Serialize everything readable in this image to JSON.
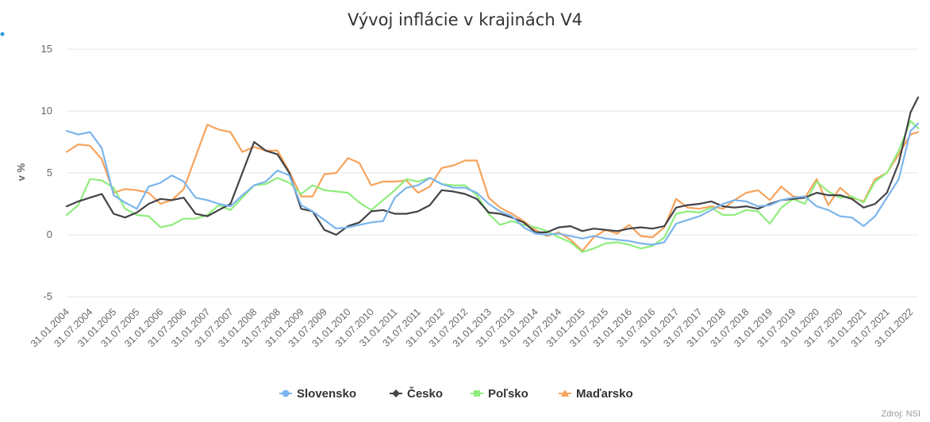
{
  "chart_data": {
    "type": "line",
    "title": "Vývoj inflácie v krajinách V4",
    "ylabel": "v %",
    "xlabel": "",
    "ylim": [
      -5,
      15
    ],
    "yticks": [
      -5,
      0,
      5,
      10,
      15
    ],
    "grid": true,
    "legend_position": "bottom-center",
    "credit": "Zdroj: NSI",
    "x_tick_labels": [
      "31.01.2004",
      "31.07.2004",
      "31.01.2005",
      "31.07.2005",
      "31.01.2006",
      "31.07.2006",
      "31.01.2007",
      "31.07.2007",
      "31.01.2008",
      "31.07.2008",
      "31.01.2009",
      "31.07.2009",
      "31.01.2010",
      "31.07.2010",
      "31.01.2011",
      "31.07.2011",
      "31.01.2012",
      "31.07.2012",
      "31.01.2013",
      "31.07.2013",
      "31.01.2014",
      "31.07.2014",
      "31.01.2015",
      "31.07.2015",
      "31.01.2016",
      "31.07.2016",
      "31.01.2017",
      "31.07.2017",
      "31.01.2018",
      "31.07.2018",
      "31.01.2019",
      "31.07.2019",
      "31.01.2020",
      "31.07.2020",
      "31.01.2021",
      "31.07.2021",
      "31.01.2022"
    ],
    "x": [
      "31.01.2004",
      "30.04.2004",
      "31.07.2004",
      "31.10.2004",
      "31.01.2005",
      "30.04.2005",
      "31.07.2005",
      "31.10.2005",
      "31.01.2006",
      "30.04.2006",
      "31.07.2006",
      "31.10.2006",
      "31.01.2007",
      "30.04.2007",
      "31.07.2007",
      "31.10.2007",
      "31.01.2008",
      "30.04.2008",
      "31.07.2008",
      "31.10.2008",
      "31.01.2009",
      "30.04.2009",
      "31.07.2009",
      "31.10.2009",
      "31.01.2010",
      "30.04.2010",
      "31.07.2010",
      "31.10.2010",
      "31.01.2011",
      "30.04.2011",
      "31.07.2011",
      "31.10.2011",
      "31.01.2012",
      "30.04.2012",
      "31.07.2012",
      "31.10.2012",
      "31.01.2013",
      "30.04.2013",
      "31.07.2013",
      "31.10.2013",
      "31.01.2014",
      "30.04.2014",
      "31.07.2014",
      "31.10.2014",
      "31.01.2015",
      "30.04.2015",
      "31.07.2015",
      "31.10.2015",
      "31.01.2016",
      "30.04.2016",
      "31.07.2016",
      "31.10.2016",
      "31.01.2017",
      "30.04.2017",
      "31.07.2017",
      "31.10.2017",
      "31.01.2018",
      "30.04.2018",
      "31.07.2018",
      "31.10.2018",
      "31.01.2019",
      "30.04.2019",
      "31.07.2019",
      "31.10.2019",
      "31.01.2020",
      "30.04.2020",
      "31.07.2020",
      "31.10.2020",
      "31.01.2021",
      "30.04.2021",
      "31.07.2021",
      "31.10.2021",
      "31.01.2022",
      "31.03.2022"
    ],
    "series": [
      {
        "name": "Slovensko",
        "color": "#7cb5ec",
        "marker": "circle",
        "values": [
          8.4,
          8.1,
          8.3,
          7.0,
          3.2,
          2.6,
          2.1,
          3.9,
          4.2,
          4.8,
          4.3,
          3.0,
          2.8,
          2.5,
          2.3,
          3.2,
          4.0,
          4.3,
          5.2,
          4.8,
          2.4,
          1.9,
          1.2,
          0.5,
          0.6,
          0.8,
          1.0,
          1.1,
          3.0,
          3.8,
          4.0,
          4.6,
          4.1,
          3.8,
          3.8,
          3.4,
          2.5,
          1.9,
          1.5,
          0.6,
          0.1,
          0.0,
          0.1,
          -0.1,
          -0.3,
          -0.1,
          -0.3,
          -0.4,
          -0.5,
          -0.7,
          -0.8,
          -0.6,
          0.9,
          1.2,
          1.5,
          2.0,
          2.5,
          2.8,
          2.7,
          2.3,
          2.4,
          2.8,
          3.0,
          3.1,
          2.3,
          2.0,
          1.5,
          1.4,
          0.7,
          1.5,
          3.0,
          4.5,
          8.4,
          9.0
        ]
      },
      {
        "name": "Česko",
        "color": "#434348",
        "marker": "diamond",
        "values": [
          2.3,
          2.7,
          3.0,
          3.3,
          1.7,
          1.4,
          1.8,
          2.5,
          2.9,
          2.8,
          3.0,
          1.7,
          1.5,
          2.0,
          2.5,
          5.0,
          7.5,
          6.8,
          6.5,
          5.0,
          2.1,
          1.9,
          0.4,
          0.0,
          0.7,
          1.0,
          1.9,
          2.0,
          1.7,
          1.7,
          1.9,
          2.4,
          3.6,
          3.5,
          3.3,
          2.9,
          1.8,
          1.7,
          1.4,
          1.0,
          0.2,
          0.2,
          0.6,
          0.7,
          0.3,
          0.5,
          0.4,
          0.3,
          0.5,
          0.6,
          0.5,
          0.7,
          2.2,
          2.4,
          2.5,
          2.7,
          2.3,
          2.2,
          2.3,
          2.1,
          2.5,
          2.8,
          2.9,
          3.0,
          3.4,
          3.2,
          3.2,
          2.9,
          2.2,
          2.5,
          3.4,
          5.8,
          9.9,
          11.1
        ]
      },
      {
        "name": "Poľsko",
        "color": "#90ed7d",
        "marker": "square",
        "values": [
          1.6,
          2.4,
          4.5,
          4.4,
          3.8,
          2.1,
          1.6,
          1.5,
          0.6,
          0.8,
          1.3,
          1.3,
          1.6,
          2.4,
          2.0,
          3.0,
          4.0,
          4.1,
          4.6,
          4.2,
          3.3,
          4.0,
          3.6,
          3.5,
          3.4,
          2.6,
          2.0,
          2.8,
          3.6,
          4.5,
          4.3,
          4.6,
          4.1,
          4.0,
          4.0,
          3.2,
          1.7,
          0.8,
          1.1,
          0.8,
          0.6,
          0.3,
          -0.2,
          -0.6,
          -1.4,
          -1.1,
          -0.7,
          -0.6,
          -0.8,
          -1.1,
          -0.9,
          -0.2,
          1.7,
          1.9,
          1.8,
          2.2,
          1.6,
          1.6,
          2.0,
          1.9,
          0.9,
          2.2,
          2.9,
          2.5,
          4.3,
          3.5,
          3.0,
          3.1,
          2.6,
          4.3,
          5.0,
          6.8,
          9.2,
          8.6
        ]
      },
      {
        "name": "Maďarsko",
        "color": "#f7a35c",
        "marker": "triangle",
        "values": [
          6.7,
          7.3,
          7.2,
          6.1,
          3.4,
          3.7,
          3.6,
          3.4,
          2.5,
          2.8,
          3.7,
          6.3,
          8.9,
          8.5,
          8.3,
          6.7,
          7.1,
          6.8,
          6.8,
          5.1,
          3.1,
          3.1,
          4.9,
          5.0,
          6.2,
          5.8,
          4.0,
          4.3,
          4.3,
          4.4,
          3.4,
          3.9,
          5.4,
          5.6,
          6.0,
          6.0,
          3.0,
          2.2,
          1.7,
          1.1,
          0.4,
          -0.1,
          0.2,
          -0.4,
          -1.3,
          -0.2,
          0.4,
          0.1,
          0.8,
          -0.1,
          -0.2,
          0.6,
          2.9,
          2.2,
          2.1,
          2.3,
          2.1,
          2.8,
          3.4,
          3.6,
          2.8,
          3.9,
          3.1,
          3.0,
          4.5,
          2.4,
          3.8,
          3.0,
          2.7,
          4.5,
          5.0,
          6.5,
          8.1,
          8.3
        ]
      }
    ]
  }
}
